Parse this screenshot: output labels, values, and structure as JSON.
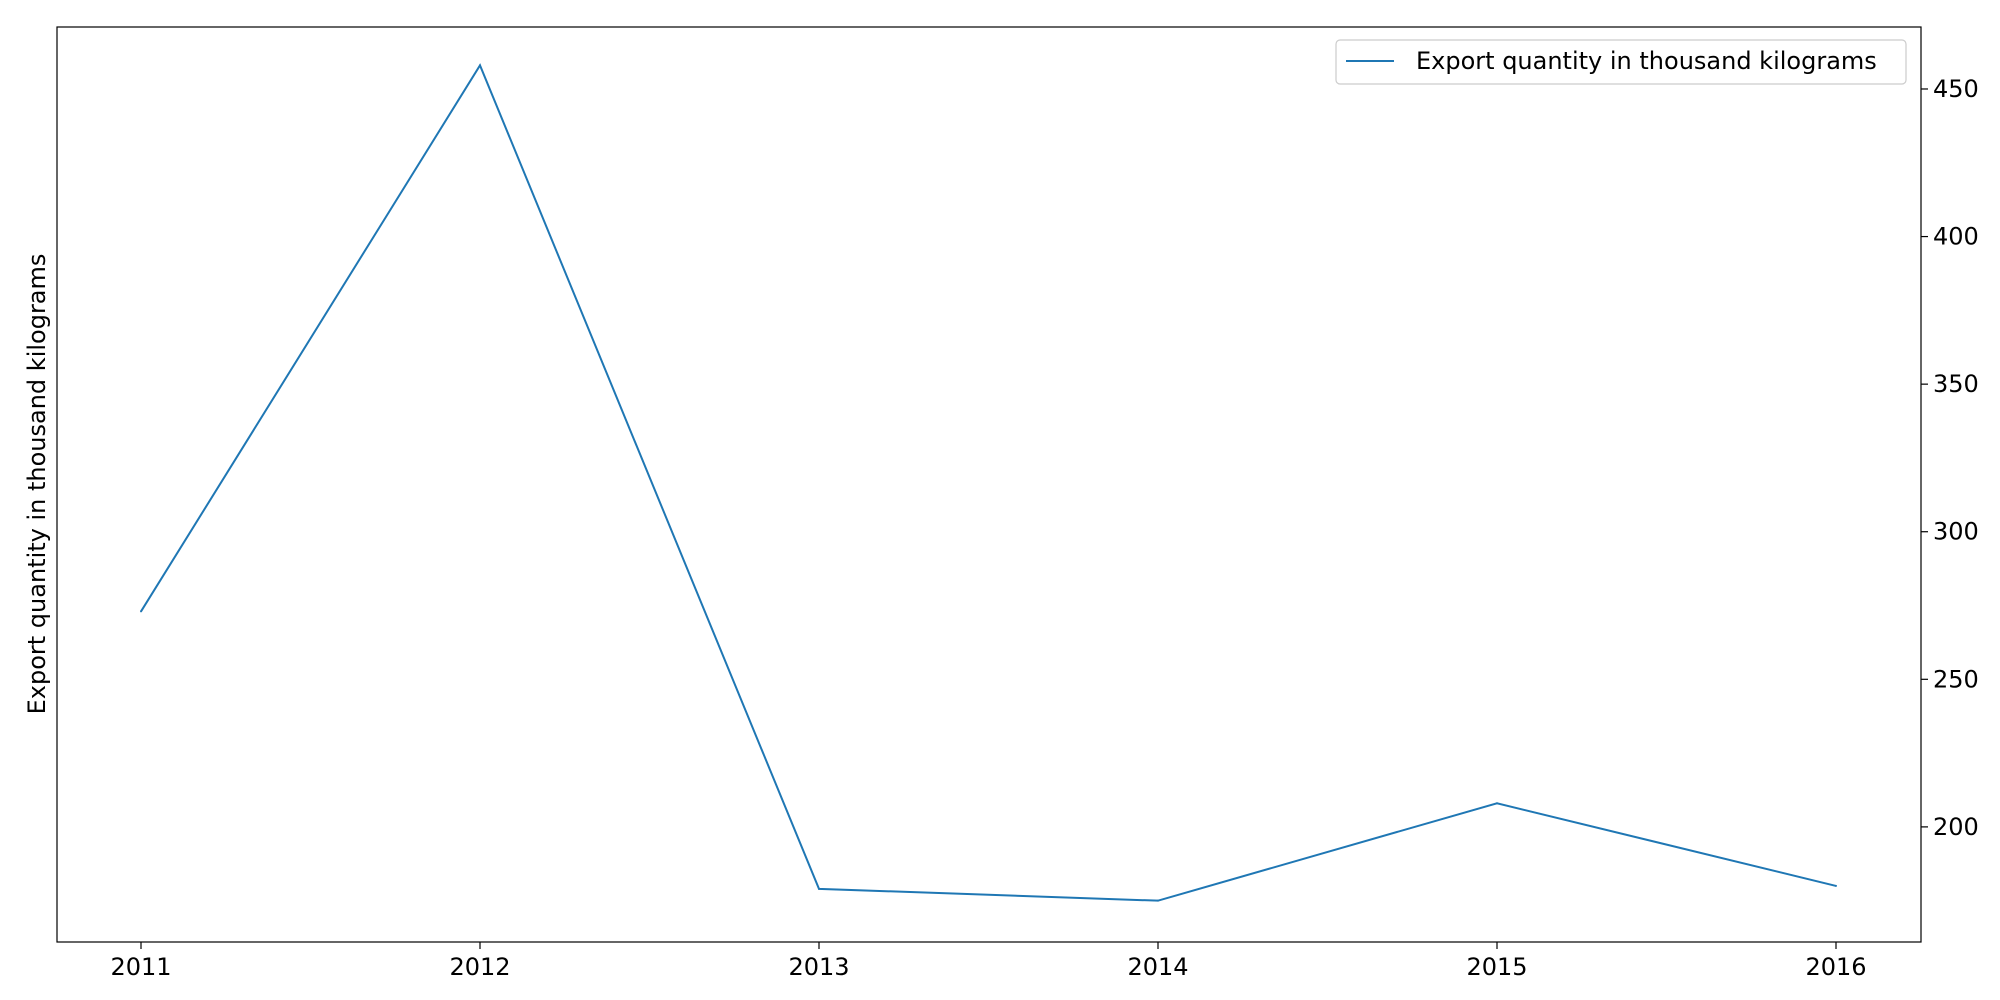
{
  "chart_data": {
    "type": "line",
    "title": "",
    "xlabel": "",
    "ylabel": "Export quantity in thousand kilograms",
    "y_axis_side": "right",
    "y_title_side": "left",
    "x": [
      "2011",
      "2012",
      "2013",
      "2014",
      "2015",
      "2016"
    ],
    "series": [
      {
        "name": "Export quantity in thousand kilograms",
        "color": "#1f77b4",
        "values": [
          273,
          458,
          179,
          175,
          208,
          180
        ]
      }
    ],
    "ylim": [
      161,
      471
    ],
    "yticks": [
      200,
      250,
      300,
      350,
      400,
      450
    ],
    "grid": false,
    "legend_position": "top-right"
  }
}
